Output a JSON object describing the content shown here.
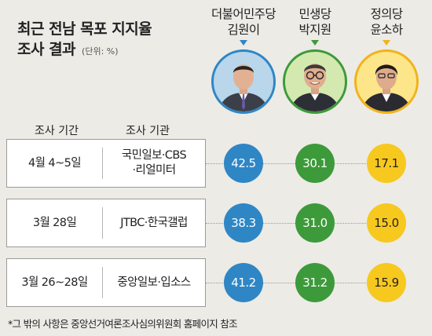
{
  "title": {
    "line1": "최근 전남 목포 지지율",
    "line2": "조사 결과",
    "unit": "(단위: %)"
  },
  "headers": {
    "date": "조사 기간",
    "org": "조사 기관"
  },
  "candidates": [
    {
      "party": "더불어민주당",
      "name": "김원이",
      "color": "#2f86c5",
      "fill": "#b9d6ea",
      "bubble": "#2f86c5",
      "text_color": "#ffffff"
    },
    {
      "party": "민생당",
      "name": "박지원",
      "color": "#3d9a3a",
      "fill": "#d4e9b0",
      "bubble": "#3d9a3a",
      "text_color": "#ffffff"
    },
    {
      "party": "정의당",
      "name": "윤소하",
      "color": "#f2b21a",
      "fill": "#fde58a",
      "bubble": "#f7c81e",
      "text_color": "#222222"
    }
  ],
  "polls": [
    {
      "date": "4월 4~5일",
      "org_line1": "국민일보·CBS",
      "org_line2": "·리얼미터"
    },
    {
      "date": "3월 28일",
      "org_line1": "JTBC·한국갤럽",
      "org_line2": ""
    },
    {
      "date": "3월 26~28일",
      "org_line1": "중앙일보·입소스",
      "org_line2": ""
    }
  ],
  "chart_data": {
    "type": "table",
    "columns": [
      "김원이",
      "박지원",
      "윤소하"
    ],
    "rows": [
      {
        "date": "4월 4~5일",
        "org": "국민일보·CBS·리얼미터",
        "values": [
          42.5,
          30.1,
          17.1
        ]
      },
      {
        "date": "3월 28일",
        "org": "JTBC·한국갤럽",
        "values": [
          38.3,
          31.0,
          15.0
        ]
      },
      {
        "date": "3월 26~28일",
        "org": "중앙일보·입소스",
        "values": [
          41.2,
          31.2,
          15.9
        ]
      }
    ],
    "value_labels": [
      [
        "42.5",
        "30.1",
        "17.1"
      ],
      [
        "38.3",
        "31.0",
        "15.0"
      ],
      [
        "41.2",
        "31.2",
        "15.9"
      ]
    ]
  },
  "footnote": "*그 밖의 사항은 중앙선거여론조사심의위원회 홈페이지 참조"
}
